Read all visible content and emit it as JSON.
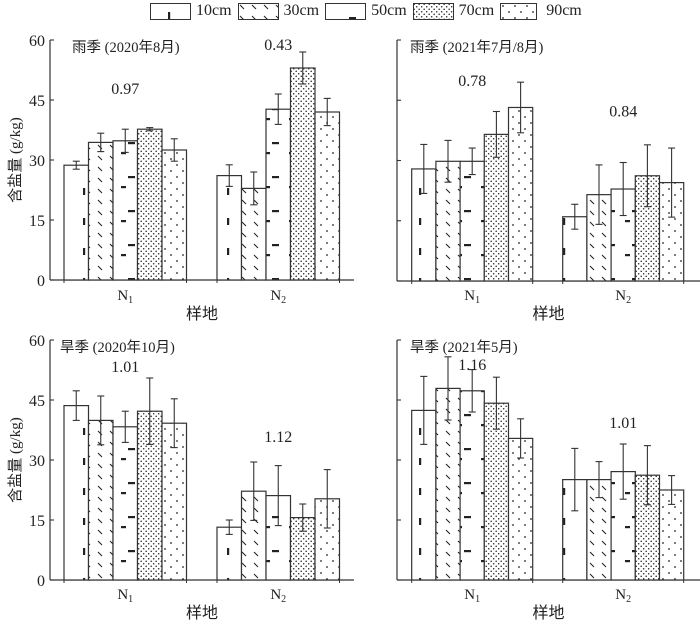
{
  "legend": [
    {
      "label": "10cm",
      "pattern": "vdash"
    },
    {
      "label": "30cm",
      "pattern": "diag"
    },
    {
      "label": "50cm",
      "pattern": "hdash"
    },
    {
      "label": "70cm",
      "pattern": "densedots"
    },
    {
      "label": "90cm",
      "pattern": "sparsedots"
    }
  ],
  "colors": {
    "stroke": "#333333",
    "fill": "#ffffff",
    "text": "#222222"
  },
  "chart_data": [
    {
      "type": "bar",
      "title": "雨季 (2020年8月)",
      "xlabel": "样地",
      "ylabel": "含盐量 (g/kg)",
      "ylim": [
        0,
        60
      ],
      "yticks": [
        0,
        15,
        30,
        45,
        60
      ],
      "show_ytick_labels": true,
      "categories": [
        "N1",
        "N2"
      ],
      "series": [
        {
          "name": "10cm",
          "values": [
            28.7,
            26.1
          ],
          "errors": [
            1.0,
            2.7
          ]
        },
        {
          "name": "30cm",
          "values": [
            34.4,
            22.9
          ],
          "errors": [
            2.3,
            4.1
          ]
        },
        {
          "name": "50cm",
          "values": [
            34.8,
            42.7
          ],
          "errors": [
            2.9,
            3.8
          ]
        },
        {
          "name": "70cm",
          "values": [
            37.7,
            53.0
          ],
          "errors": [
            0.4,
            4.0
          ]
        },
        {
          "name": "90cm",
          "values": [
            32.5,
            42.0
          ],
          "errors": [
            2.8,
            3.4
          ]
        }
      ],
      "annotations": [
        {
          "category": "N1",
          "text": "0.97",
          "y": 46.5
        },
        {
          "category": "N2",
          "text": "0.43",
          "y": 57.5
        }
      ]
    },
    {
      "type": "bar",
      "title": "雨季 (2021年7月/8月)",
      "xlabel": "样地",
      "ylabel": "",
      "ylim": [
        0,
        60
      ],
      "yticks": [
        0,
        15,
        30,
        45,
        60
      ],
      "show_ytick_labels": false,
      "categories": [
        "N1",
        "N2"
      ],
      "series": [
        {
          "name": "10cm",
          "values": [
            27.9,
            16.0
          ],
          "errors": [
            6.1,
            3.1
          ]
        },
        {
          "name": "30cm",
          "values": [
            29.8,
            21.5
          ],
          "errors": [
            5.2,
            7.4
          ]
        },
        {
          "name": "50cm",
          "values": [
            29.8,
            22.9
          ],
          "errors": [
            3.3,
            6.6
          ]
        },
        {
          "name": "70cm",
          "values": [
            36.5,
            26.2
          ],
          "errors": [
            5.7,
            7.7
          ]
        },
        {
          "name": "90cm",
          "values": [
            43.2,
            24.5
          ],
          "errors": [
            6.3,
            8.6
          ]
        }
      ],
      "annotations": [
        {
          "category": "N1",
          "text": "0.78",
          "y": 48.5
        },
        {
          "category": "N2",
          "text": "0.84",
          "y": 41.0
        }
      ]
    },
    {
      "type": "bar",
      "title": "旱季 (2020年10月)",
      "xlabel": "样地",
      "ylabel": "含盐量 (g/kg)",
      "ylim": [
        0,
        60
      ],
      "yticks": [
        0,
        15,
        30,
        45,
        60
      ],
      "show_ytick_labels": true,
      "categories": [
        "N1",
        "N2"
      ],
      "series": [
        {
          "name": "10cm",
          "values": [
            43.6,
            13.2
          ],
          "errors": [
            3.7,
            1.8
          ]
        },
        {
          "name": "30cm",
          "values": [
            39.9,
            22.2
          ],
          "errors": [
            6.1,
            7.3
          ]
        },
        {
          "name": "50cm",
          "values": [
            38.3,
            21.1
          ],
          "errors": [
            3.9,
            7.5
          ]
        },
        {
          "name": "70cm",
          "values": [
            42.2,
            15.6
          ],
          "errors": [
            8.3,
            3.4
          ]
        },
        {
          "name": "90cm",
          "values": [
            39.2,
            20.3
          ],
          "errors": [
            6.1,
            7.3
          ]
        }
      ],
      "annotations": [
        {
          "category": "N1",
          "text": "1.01",
          "y": 52.0
        },
        {
          "category": "N2",
          "text": "1.12",
          "y": 34.5
        }
      ]
    },
    {
      "type": "bar",
      "title": "旱季 (2021年5月)",
      "xlabel": "样地",
      "ylabel": "",
      "ylim": [
        0,
        60
      ],
      "yticks": [
        0,
        15,
        30,
        45,
        60
      ],
      "show_ytick_labels": false,
      "categories": [
        "N1",
        "N2"
      ],
      "series": [
        {
          "name": "10cm",
          "values": [
            42.4,
            25.1
          ],
          "errors": [
            8.5,
            7.8
          ]
        },
        {
          "name": "30cm",
          "values": [
            47.9,
            25.1
          ],
          "errors": [
            7.9,
            4.5
          ]
        },
        {
          "name": "50cm",
          "values": [
            47.3,
            27.1
          ],
          "errors": [
            5.3,
            6.9
          ]
        },
        {
          "name": "70cm",
          "values": [
            44.2,
            26.2
          ],
          "errors": [
            6.5,
            7.4
          ]
        },
        {
          "name": "90cm",
          "values": [
            35.4,
            22.5
          ],
          "errors": [
            4.9,
            3.6
          ]
        }
      ],
      "annotations": [
        {
          "category": "N1",
          "text": "1.16",
          "y": 55.5
        },
        {
          "category": "N2",
          "text": "1.01",
          "y": 38.0
        }
      ]
    }
  ]
}
